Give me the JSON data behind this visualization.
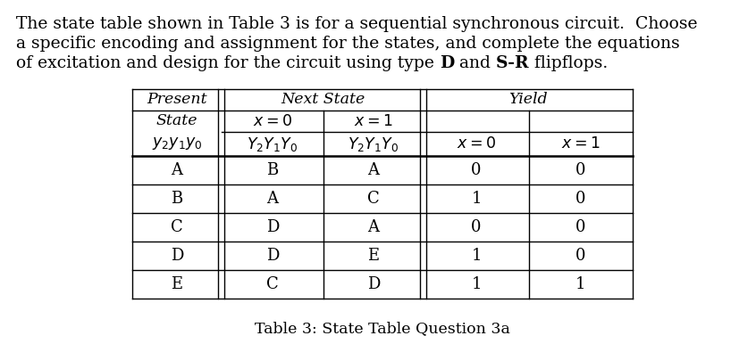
{
  "title_text": "Table 3: State Table Question 3a",
  "para_line1": "The state table shown in Table 3 is for a sequential synchronous circuit.  Choose",
  "para_line2": "a specific encoding and assignment for the states, and complete the equations",
  "para_line3_prefix": "of excitation and design for the circuit using type ",
  "para_line3_bold1": "D",
  "para_line3_mid": " and ",
  "para_line3_bold2": "S-R",
  "para_line3_suffix": " flipflops.",
  "data_rows": [
    [
      "A",
      "B",
      "A",
      "0",
      "0"
    ],
    [
      "B",
      "A",
      "C",
      "1",
      "0"
    ],
    [
      "C",
      "D",
      "A",
      "0",
      "0"
    ],
    [
      "D",
      "D",
      "E",
      "1",
      "0"
    ],
    [
      "E",
      "C",
      "D",
      "1",
      "1"
    ]
  ],
  "text_color": "#000000",
  "bg_color": "#ffffff",
  "fig_width": 8.46,
  "fig_height": 3.86,
  "dpi": 100
}
